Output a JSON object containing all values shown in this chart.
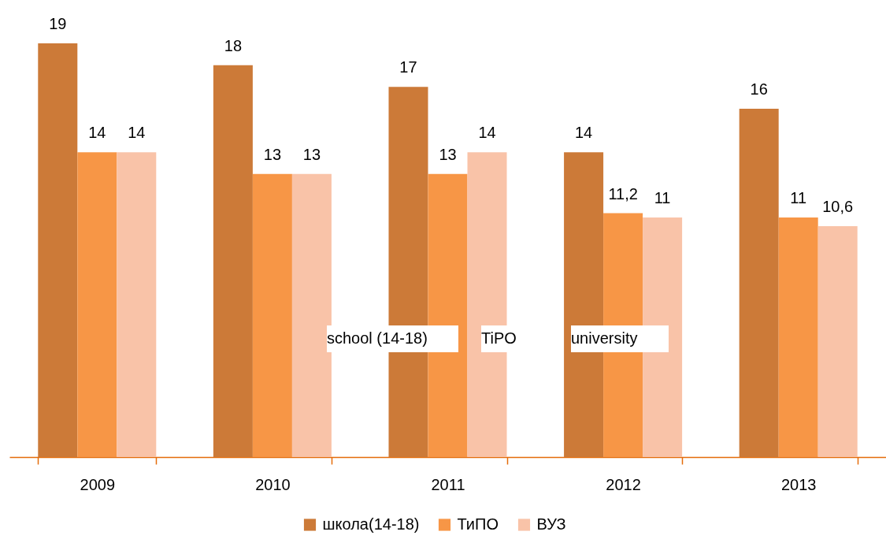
{
  "chart_data": {
    "type": "bar",
    "categories": [
      "2009",
      "2010",
      "2011",
      "2012",
      "2013"
    ],
    "series": [
      {
        "name": "школа(14-18)",
        "color": "#cc7a38",
        "values": [
          19,
          18,
          17,
          14,
          16
        ],
        "value_labels": [
          "19",
          "18",
          "17",
          "14",
          "16"
        ]
      },
      {
        "name": "ТиПО",
        "color": "#f79646",
        "values": [
          14,
          13,
          13,
          11.2,
          11
        ],
        "value_labels": [
          "14",
          "13",
          "13",
          "11,2",
          "11"
        ]
      },
      {
        "name": "ВУЗ",
        "color": "#f9c3a8",
        "values": [
          14,
          13,
          14,
          11,
          10.6
        ],
        "value_labels": [
          "14",
          "13",
          "14",
          "11",
          "10,6"
        ]
      }
    ],
    "annotations": [
      "school (14-18)",
      "TiPO",
      "university"
    ],
    "legend": "bottom"
  }
}
